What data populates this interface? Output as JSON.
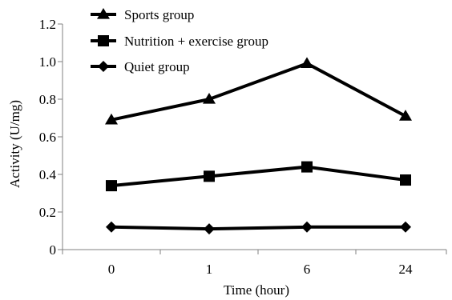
{
  "chart_data": {
    "type": "line",
    "categories": [
      "0",
      "1",
      "6",
      "24"
    ],
    "xlabel": "Time (hour)",
    "ylabel": "Activity (U/mg)",
    "ylim": [
      0,
      1.2
    ],
    "yticks": [
      "0",
      "0.2",
      "0.4",
      "0.6",
      "0.8",
      "1.0",
      "1.2"
    ],
    "ytick_values": [
      0,
      0.2,
      0.4,
      0.6,
      0.8,
      1.0,
      1.2
    ],
    "grid": false,
    "legend_position": "top-left",
    "series": [
      {
        "name": "Sports group",
        "marker": "triangle",
        "values": [
          0.69,
          0.8,
          0.99,
          0.71
        ]
      },
      {
        "name": "Nutrition + exercise group",
        "marker": "square",
        "values": [
          0.34,
          0.39,
          0.44,
          0.37
        ]
      },
      {
        "name": "Quiet group",
        "marker": "diamond",
        "values": [
          0.12,
          0.11,
          0.12,
          0.12
        ]
      }
    ],
    "line_color": "#000000"
  }
}
